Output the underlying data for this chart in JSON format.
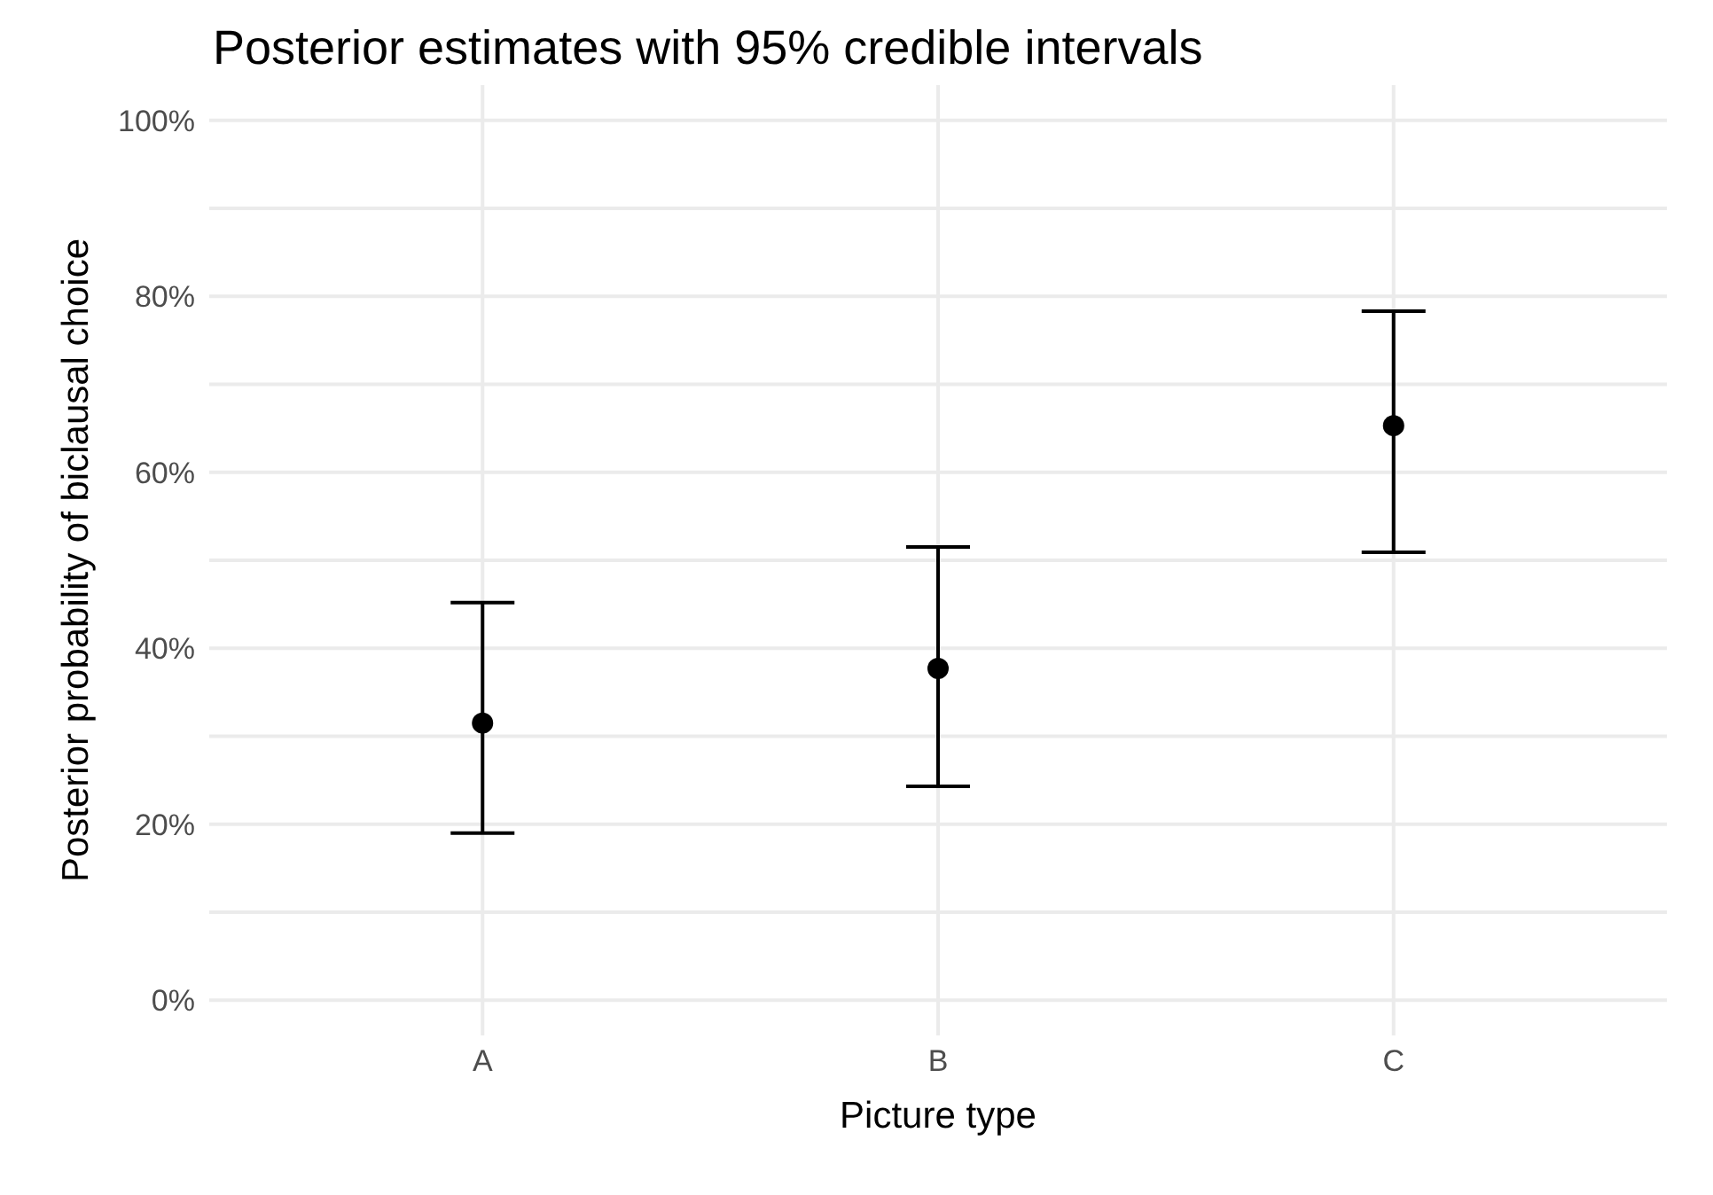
{
  "chart_data": {
    "type": "scatter",
    "title": "Posterior estimates with 95% credible intervals",
    "xlabel": "Picture type",
    "ylabel": "Posterior probability of biclausal choice",
    "categories": [
      "A",
      "B",
      "C"
    ],
    "values": [
      31.5,
      37.7,
      65.3
    ],
    "color": "#000000",
    "errors": [
      [
        19,
        45.2
      ],
      [
        24.3,
        51.5
      ],
      [
        50.9,
        78.3
      ]
    ],
    "ylim": [
      -4,
      104
    ],
    "yticks": [
      {
        "value": 0,
        "label": "0%"
      },
      {
        "value": 10,
        "label": null
      },
      {
        "value": 20,
        "label": "20%"
      },
      {
        "value": 30,
        "label": null
      },
      {
        "value": 40,
        "label": "40%"
      },
      {
        "value": 50,
        "label": null
      },
      {
        "value": 60,
        "label": "60%"
      },
      {
        "value": 70,
        "label": null
      },
      {
        "value": 80,
        "label": "80%"
      },
      {
        "value": 90,
        "label": null
      },
      {
        "value": 100,
        "label": "100%"
      }
    ],
    "grid": true,
    "marker": "circle"
  }
}
